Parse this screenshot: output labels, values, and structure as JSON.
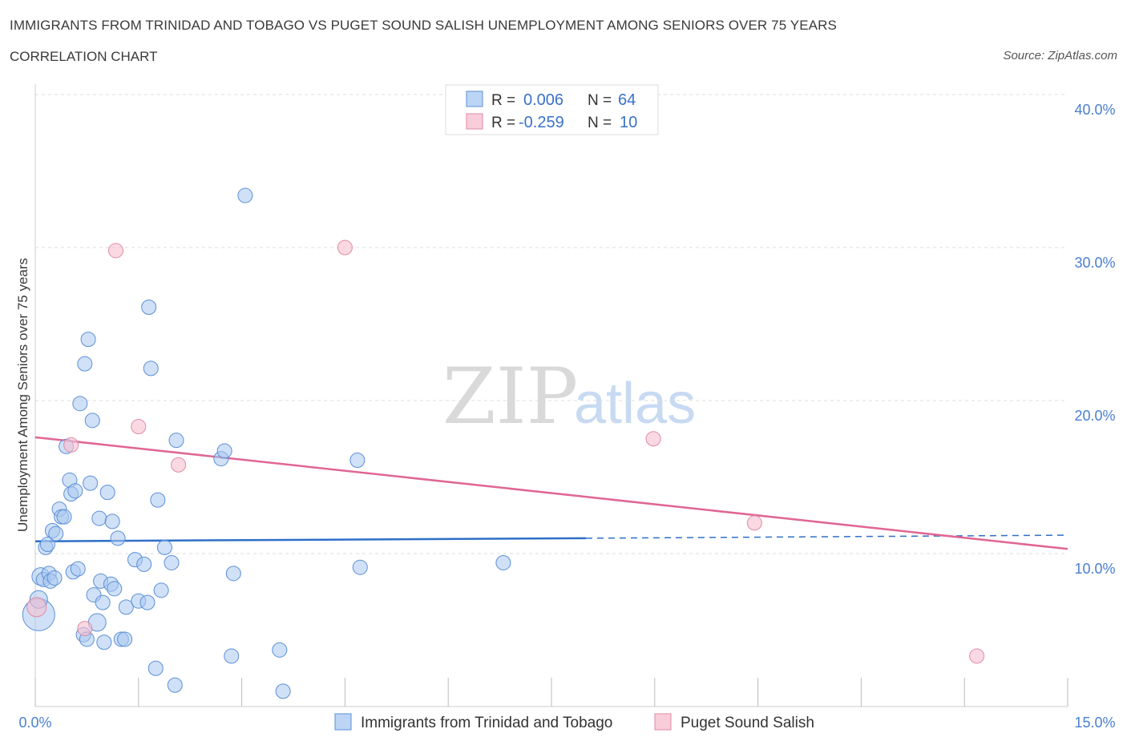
{
  "header": {
    "title": "IMMIGRANTS FROM TRINIDAD AND TOBAGO VS PUGET SOUND SALISH UNEMPLOYMENT AMONG SENIORS OVER 75 YEARS",
    "subtitle": "CORRELATION CHART",
    "source": "Source: ZipAtlas.com"
  },
  "watermark": {
    "part1": "ZIP",
    "part2": "atlas"
  },
  "legend_top": {
    "rows": [
      {
        "r_label": "R =",
        "r_value": "0.006",
        "n_label": "N =",
        "n_value": "64"
      },
      {
        "r_label": "R =",
        "r_value": "-0.259",
        "n_label": "N =",
        "n_value": "10"
      }
    ]
  },
  "colors": {
    "blue_fill": "#a9c8f0",
    "blue_stroke": "#5b8fd6",
    "blue_line": "#2f6fc8",
    "pink_fill": "#f6bfd0",
    "pink_stroke": "#e08aa6",
    "pink_line": "#e06693",
    "grid": "#dddddd",
    "tick": "#4a7fd0"
  },
  "chart_data": {
    "type": "scatter",
    "title": "IMMIGRANTS FROM TRINIDAD AND TOBAGO VS PUGET SOUND SALISH UNEMPLOYMENT AMONG SENIORS OVER 75 YEARS",
    "xlabel": "",
    "ylabel": "Unemployment Among Seniors over 75 years",
    "xlim": [
      0,
      15
    ],
    "ylim": [
      0,
      40
    ],
    "x_tick_labels": [
      "0.0%",
      "15.0%"
    ],
    "y_ticks": [
      10,
      20,
      30,
      40
    ],
    "y_tick_labels": [
      "10.0%",
      "20.0%",
      "30.0%",
      "40.0%"
    ],
    "legend": [
      "Immigrants from Trinidad and Tobago",
      "Puget Sound Salish"
    ],
    "series": [
      {
        "name": "Immigrants from Trinidad and Tobago",
        "R": 0.006,
        "N": 64,
        "trend": {
          "x0": 0,
          "y0": 10.8,
          "x1": 8.0,
          "y1": 11.0,
          "x_dash_end": 15.0,
          "y_dash_end": 11.2
        },
        "points": [
          [
            0.05,
            6.0,
            20
          ],
          [
            0.05,
            7.0,
            11
          ],
          [
            0.08,
            8.5,
            11
          ],
          [
            0.12,
            8.3,
            9
          ],
          [
            0.15,
            10.4,
            9
          ],
          [
            0.18,
            10.6,
            9
          ],
          [
            0.2,
            8.7,
            9
          ],
          [
            0.22,
            8.2,
            9
          ],
          [
            0.25,
            11.5,
            9
          ],
          [
            0.28,
            8.4,
            9
          ],
          [
            0.3,
            11.3,
            9
          ],
          [
            0.35,
            12.9,
            9
          ],
          [
            0.38,
            12.4,
            9
          ],
          [
            0.42,
            12.4,
            9
          ],
          [
            0.45,
            17.0,
            9
          ],
          [
            0.5,
            14.8,
            9
          ],
          [
            0.52,
            13.9,
            9
          ],
          [
            0.55,
            8.8,
            9
          ],
          [
            0.58,
            14.1,
            9
          ],
          [
            0.62,
            9.0,
            9
          ],
          [
            0.65,
            19.8,
            9
          ],
          [
            0.7,
            4.7,
            9
          ],
          [
            0.72,
            22.4,
            9
          ],
          [
            0.75,
            4.4,
            9
          ],
          [
            0.77,
            24.0,
            9
          ],
          [
            0.8,
            14.6,
            9
          ],
          [
            0.83,
            18.7,
            9
          ],
          [
            0.85,
            7.3,
            9
          ],
          [
            0.9,
            5.5,
            11
          ],
          [
            0.93,
            12.3,
            9
          ],
          [
            0.95,
            8.2,
            9
          ],
          [
            0.98,
            6.8,
            9
          ],
          [
            1.0,
            4.2,
            9
          ],
          [
            1.05,
            14.0,
            9
          ],
          [
            1.1,
            8.0,
            9
          ],
          [
            1.12,
            12.1,
            9
          ],
          [
            1.15,
            7.7,
            9
          ],
          [
            1.2,
            11.0,
            9
          ],
          [
            1.25,
            4.4,
            9
          ],
          [
            1.3,
            4.4,
            9
          ],
          [
            1.32,
            6.5,
            9
          ],
          [
            1.45,
            9.6,
            9
          ],
          [
            1.5,
            6.9,
            9
          ],
          [
            1.58,
            9.3,
            9
          ],
          [
            1.63,
            6.8,
            9
          ],
          [
            1.65,
            26.1,
            9
          ],
          [
            1.68,
            22.1,
            9
          ],
          [
            1.75,
            2.5,
            9
          ],
          [
            1.78,
            13.5,
            9
          ],
          [
            1.83,
            7.6,
            9
          ],
          [
            1.88,
            10.4,
            9
          ],
          [
            1.98,
            9.4,
            9
          ],
          [
            2.03,
            1.4,
            9
          ],
          [
            2.05,
            17.4,
            9
          ],
          [
            2.7,
            16.2,
            9
          ],
          [
            2.75,
            16.7,
            9
          ],
          [
            2.85,
            3.3,
            9
          ],
          [
            2.88,
            8.7,
            9
          ],
          [
            3.05,
            33.4,
            9
          ],
          [
            3.55,
            3.7,
            9
          ],
          [
            3.6,
            1.0,
            9
          ],
          [
            4.68,
            16.1,
            9
          ],
          [
            4.72,
            9.1,
            9
          ],
          [
            6.8,
            9.4,
            9
          ]
        ]
      },
      {
        "name": "Puget Sound Salish",
        "R": -0.259,
        "N": 10,
        "trend": {
          "x0": 0,
          "y0": 17.6,
          "x1": 15.0,
          "y1": 10.3
        },
        "points": [
          [
            0.02,
            6.5,
            12
          ],
          [
            0.52,
            17.1,
            9
          ],
          [
            0.72,
            5.1,
            9
          ],
          [
            1.17,
            29.8,
            9
          ],
          [
            1.5,
            18.3,
            9
          ],
          [
            2.08,
            15.8,
            9
          ],
          [
            4.5,
            30.0,
            9
          ],
          [
            8.98,
            17.5,
            9
          ],
          [
            10.45,
            12.0,
            9
          ],
          [
            13.68,
            3.3,
            9
          ]
        ]
      }
    ]
  }
}
